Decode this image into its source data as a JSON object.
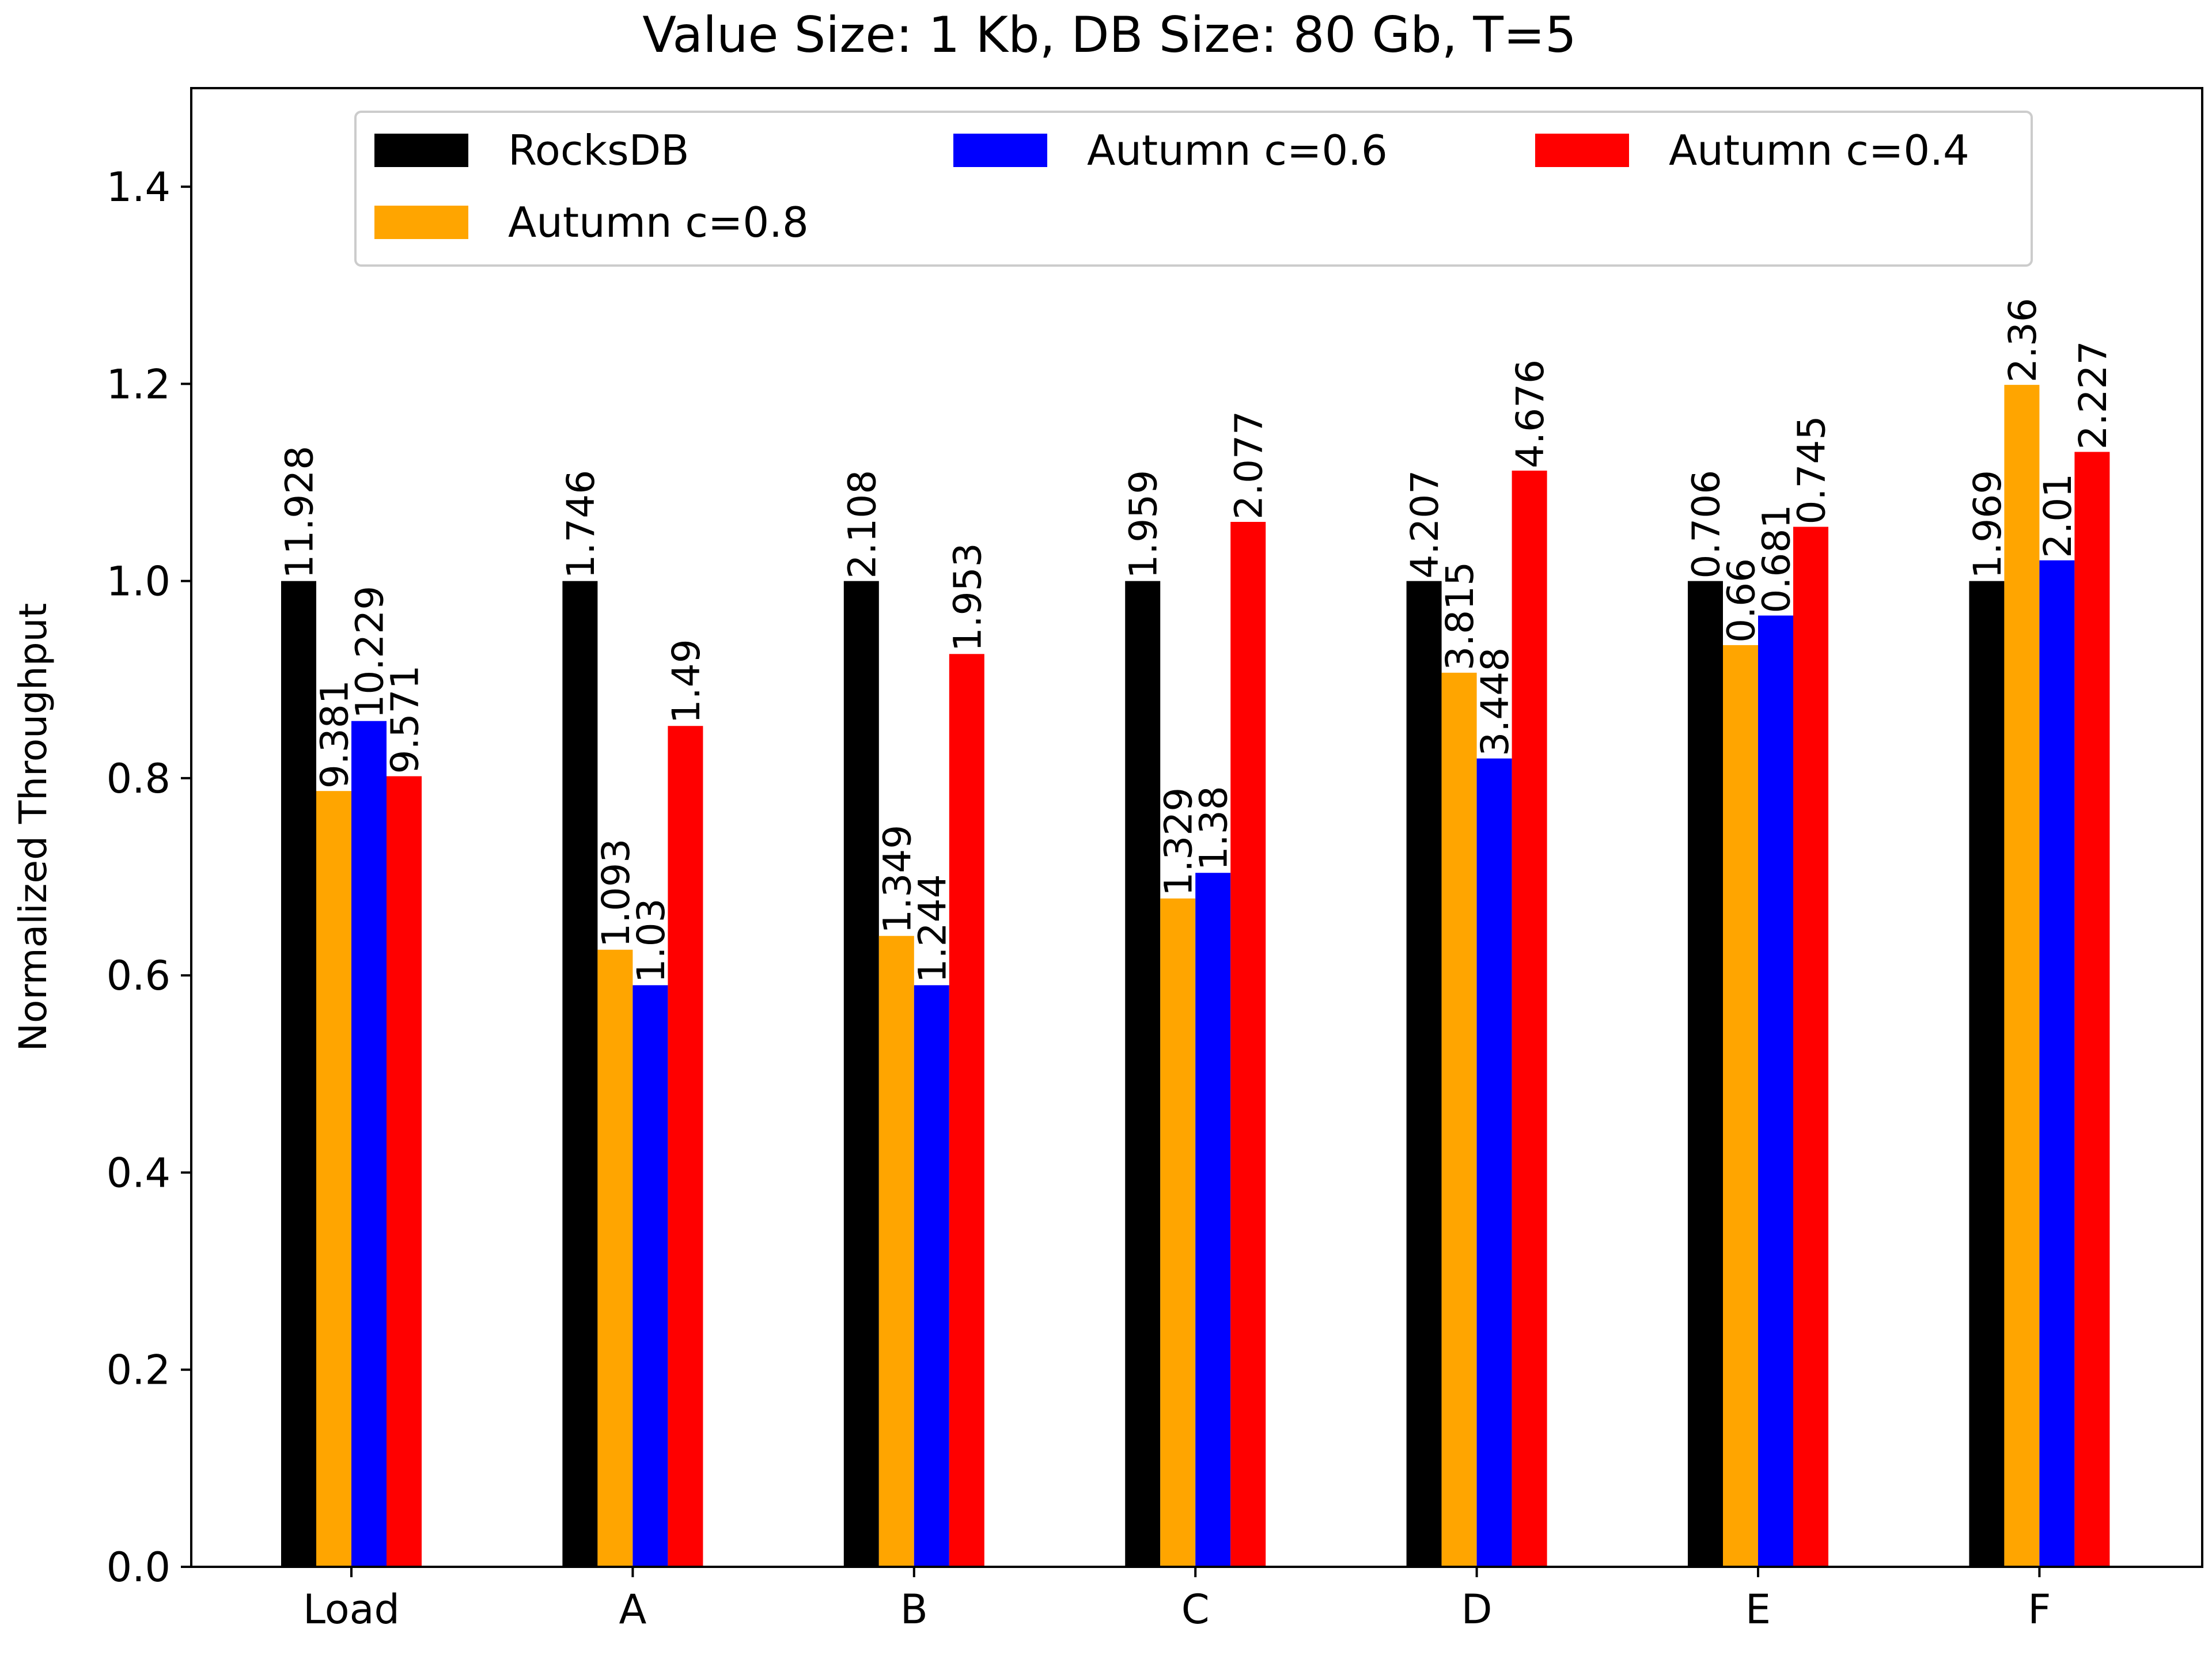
{
  "chart_data": {
    "type": "bar",
    "title": "Value Size: 1 Kb, DB Size: 80 Gb, T=5",
    "xlabel": "",
    "ylabel": "Normalized Throughput",
    "ylim": [
      0,
      1.5
    ],
    "yticks": [
      "0.0",
      "0.2",
      "0.4",
      "0.6",
      "0.8",
      "1.0",
      "1.2",
      "1.4"
    ],
    "categories": [
      "Load",
      "A",
      "B",
      "C",
      "D",
      "E",
      "F"
    ],
    "grid": false,
    "legend_position": "top",
    "series": [
      {
        "name": "RocksDB",
        "color": "#000000",
        "values": [
          1.0,
          1.0,
          1.0,
          1.0,
          1.0,
          1.0,
          1.0
        ],
        "labels": [
          "11.928",
          "1.746",
          "2.108",
          "1.959",
          "4.207",
          "0.706",
          "1.969"
        ]
      },
      {
        "name": "Autumn c=0.8",
        "color": "#FFA500",
        "values": [
          0.787,
          0.626,
          0.64,
          0.678,
          0.907,
          0.935,
          1.199
        ],
        "labels": [
          "9.381",
          "1.093",
          "1.349",
          "1.329",
          "3.815",
          "0.66",
          "2.36"
        ]
      },
      {
        "name": "Autumn c=0.6",
        "color": "#0000FF",
        "values": [
          0.858,
          0.59,
          0.59,
          0.704,
          0.82,
          0.965,
          1.021
        ],
        "labels": [
          "10.229",
          "1.03",
          "1.244",
          "1.38",
          "3.448",
          "0.681",
          "2.01"
        ]
      },
      {
        "name": "Autumn c=0.4",
        "color": "#FF0000",
        "values": [
          0.802,
          0.853,
          0.926,
          1.06,
          1.112,
          1.055,
          1.131
        ],
        "labels": [
          "9.571",
          "1.49",
          "1.953",
          "2.077",
          "4.676",
          "0.745",
          "2.227"
        ]
      }
    ]
  }
}
